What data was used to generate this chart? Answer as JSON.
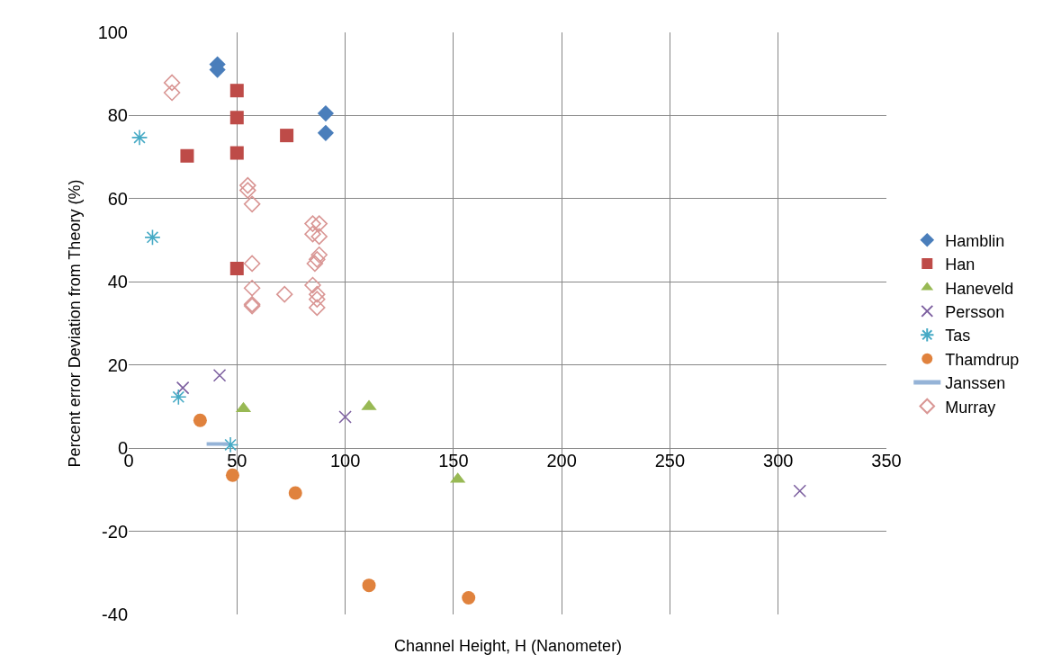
{
  "chart_data": {
    "type": "scatter",
    "xlabel": "Channel Height, H (Nanometer)",
    "ylabel": "Percent error Deviation from Theory (%)",
    "xlim": [
      0,
      350
    ],
    "xticks": [
      0,
      50,
      100,
      150,
      200,
      250,
      300,
      350
    ],
    "ylim": [
      -40,
      100
    ],
    "yticks": [
      -40,
      -20,
      0,
      20,
      40,
      60,
      80,
      100
    ],
    "grid": true,
    "legend": "right",
    "series": [
      {
        "name": "Hamblin",
        "color": "#4a7ebb",
        "marker": "diamond",
        "x": [
          41,
          41,
          91,
          91
        ],
        "values": [
          92.3,
          91,
          80.5,
          75.8
        ]
      },
      {
        "name": "Han",
        "color": "#be4b48",
        "marker": "square",
        "x": [
          27,
          50,
          50,
          50,
          73,
          50
        ],
        "values": [
          70.3,
          86,
          79.5,
          71,
          75.2,
          43.2
        ]
      },
      {
        "name": "Haneveld",
        "color": "#98b954",
        "marker": "triangle",
        "x": [
          53,
          111,
          152
        ],
        "values": [
          9.5,
          10,
          -7.5
        ]
      },
      {
        "name": "Persson",
        "color": "#7d60a0",
        "marker": "cross",
        "x": [
          25,
          42,
          100,
          310
        ],
        "values": [
          14.5,
          17.5,
          7.5,
          -10.3
        ]
      },
      {
        "name": "Tas",
        "color": "#46aac5",
        "marker": "cross",
        "x": [
          5,
          11,
          23,
          47
        ],
        "values": [
          74.7,
          50.7,
          12.3,
          0.8
        ]
      },
      {
        "name": "Thamdrup",
        "color": "#e0823d",
        "marker": "circle",
        "x": [
          33,
          48,
          77,
          111,
          157
        ],
        "values": [
          6.7,
          -6.5,
          -10.8,
          -33,
          -36
        ]
      },
      {
        "name": "Janssen",
        "type": "line",
        "color": "#95b3d7",
        "marker": "none",
        "x": [
          36,
          46
        ],
        "values": [
          1,
          1
        ]
      },
      {
        "name": "Murray",
        "color": "#d99694",
        "marker": "diamond-open",
        "x": [
          20,
          20,
          55,
          55,
          57,
          57,
          57,
          57,
          57,
          72,
          85,
          88,
          85,
          88,
          88,
          87,
          86,
          85,
          87,
          87,
          87
        ],
        "values": [
          87.9,
          85.5,
          63.2,
          62,
          58.7,
          44.4,
          38.5,
          34.2,
          34.6,
          37,
          54,
          54,
          51.5,
          50.9,
          46.5,
          45.4,
          44.4,
          39.2,
          37,
          35.8,
          33.8
        ]
      }
    ]
  }
}
